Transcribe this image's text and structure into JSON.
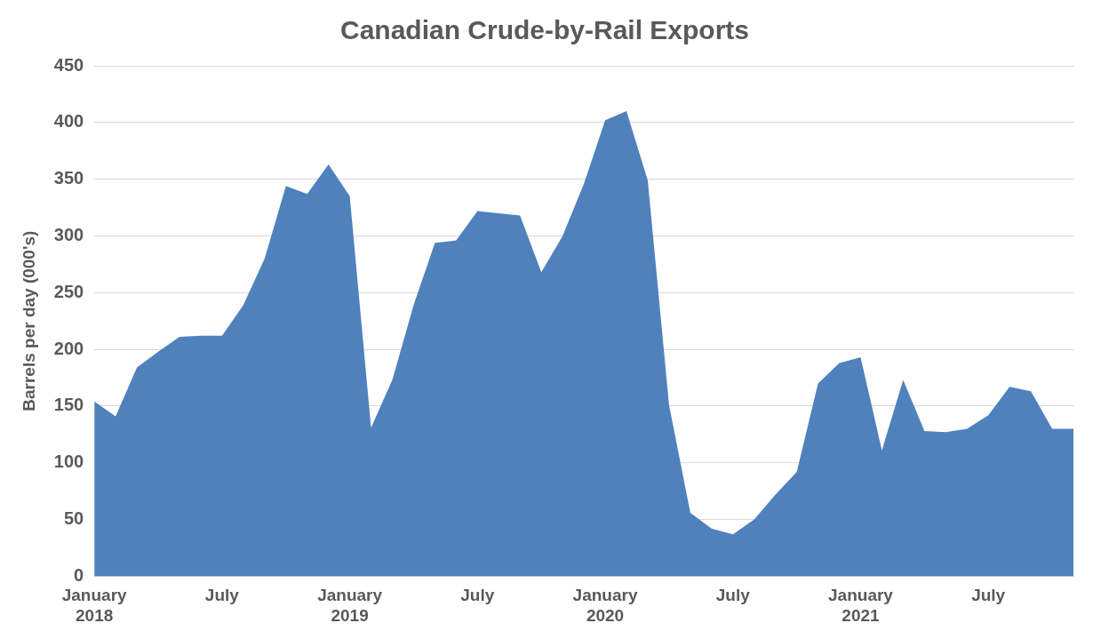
{
  "chart_data": {
    "type": "area",
    "title": "Canadian Crude-by-Rail Exports",
    "ylabel": "Barrels per day (000's)",
    "categories": [
      "January\n2018",
      null,
      null,
      null,
      null,
      null,
      "July",
      null,
      null,
      null,
      null,
      null,
      "January\n2019",
      null,
      null,
      null,
      null,
      null,
      "July",
      null,
      null,
      null,
      null,
      null,
      "January\n2020",
      null,
      null,
      null,
      null,
      null,
      "July",
      null,
      null,
      null,
      null,
      null,
      "January\n2021",
      null,
      null,
      null,
      null,
      null,
      "July",
      null,
      null,
      null,
      null
    ],
    "series": [
      {
        "color": "#4f81bd",
        "values": [
          154,
          141,
          184,
          198,
          211,
          212,
          212,
          239,
          280,
          344,
          337,
          363,
          335,
          131,
          173,
          239,
          294,
          296,
          322,
          320,
          318,
          268,
          300,
          346,
          402,
          410,
          349,
          151,
          56,
          42,
          37,
          50,
          72,
          92,
          170,
          188,
          193,
          111,
          173,
          128,
          127,
          130,
          142,
          167,
          163,
          130,
          130
        ]
      }
    ],
    "ylim": [
      0,
      450
    ],
    "yticks": [
      0,
      50,
      100,
      150,
      200,
      250,
      300,
      350,
      400,
      450
    ],
    "grid": "y",
    "legend": false
  }
}
